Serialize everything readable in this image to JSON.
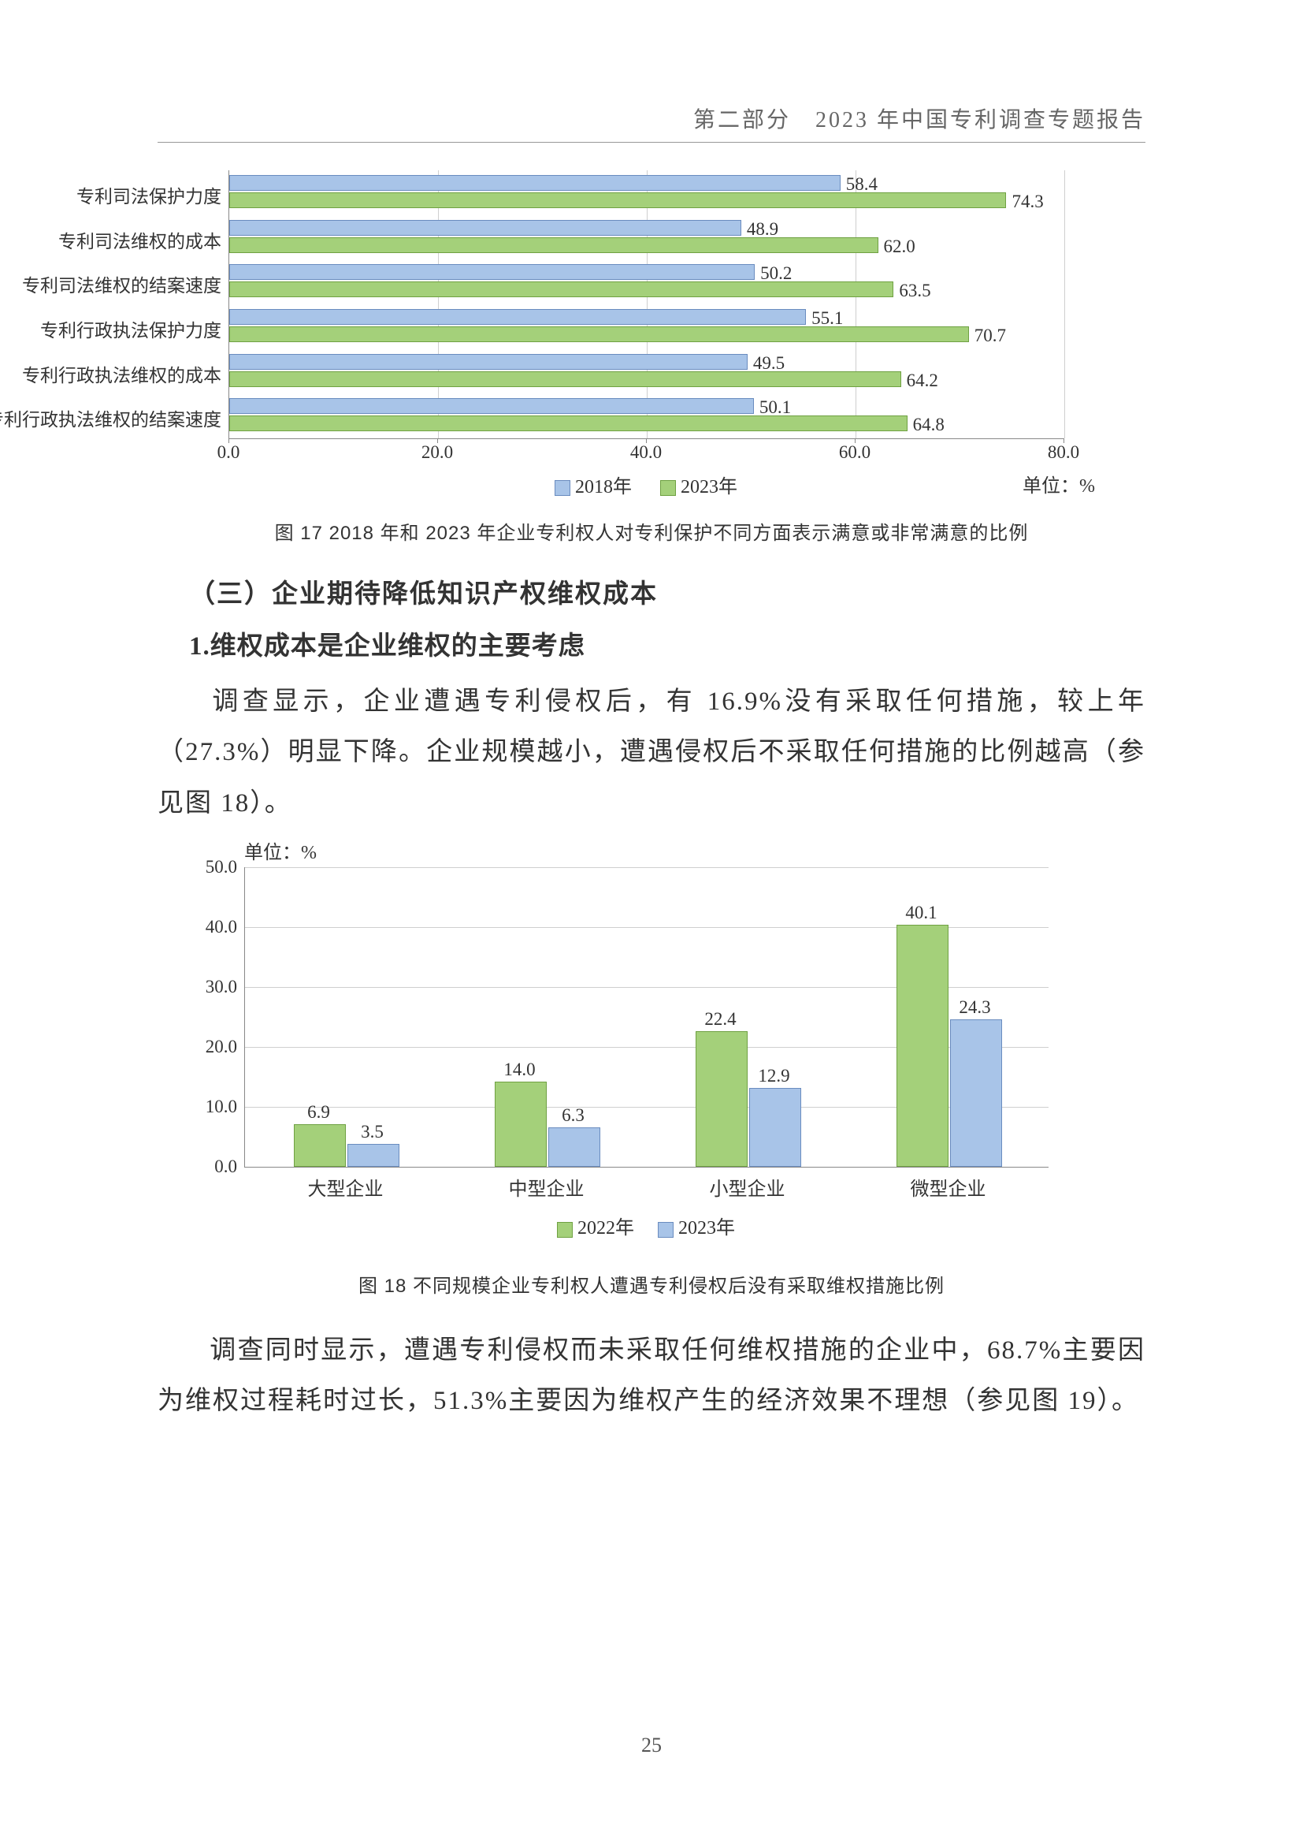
{
  "header": {
    "text": "第二部分　2023 年中国专利调查专题报告"
  },
  "chart1": {
    "type": "bar-horizontal-grouped",
    "categories": [
      "专利司法保护力度",
      "专利司法维权的成本",
      "专利司法维权的结案速度",
      "专利行政执法保护力度",
      "专利行政执法维权的成本",
      "专利行政执法维权的结案速度"
    ],
    "series": [
      {
        "name": "2018年",
        "color": "#a8c4e8",
        "border": "#6a8cbf",
        "values": [
          58.4,
          48.9,
          50.2,
          55.1,
          49.5,
          50.1
        ]
      },
      {
        "name": "2023年",
        "color": "#a4d07a",
        "border": "#6fa142",
        "values": [
          74.3,
          62.0,
          63.5,
          70.7,
          64.2,
          64.8
        ]
      }
    ],
    "xlim": [
      0,
      80
    ],
    "xtick_step": 20,
    "xticks": [
      "0.0",
      "20.0",
      "40.0",
      "60.0",
      "80.0"
    ],
    "unit_label": "单位：%",
    "background": "#ffffff",
    "grid_color": "#cfcfcf",
    "label_fontsize": 23,
    "value_fontsize": 23
  },
  "caption1": "图 17 2018 年和 2023 年企业专利权人对专利保护不同方面表示满意或非常满意的比例",
  "heading_sub": "（三）企业期待降低知识产权维权成本",
  "heading_num": "1.维权成本是企业维权的主要考虑",
  "para1": "调查显示，企业遭遇专利侵权后，有 16.9%没有采取任何措施，较上年（27.3%）明显下降。企业规模越小，遭遇侵权后不采取任何措施的比例越高（参见图 18）。",
  "chart2": {
    "type": "bar-vertical-grouped",
    "unit_label": "单位：%",
    "categories": [
      "大型企业",
      "中型企业",
      "小型企业",
      "微型企业"
    ],
    "series": [
      {
        "name": "2022年",
        "color": "#a4d07a",
        "border": "#6fa142",
        "values": [
          6.9,
          14.0,
          22.4,
          40.1
        ]
      },
      {
        "name": "2023年",
        "color": "#a8c4e8",
        "border": "#6a8cbf",
        "values": [
          3.5,
          6.3,
          12.9,
          24.3
        ]
      }
    ],
    "ylim": [
      0,
      50
    ],
    "ytick_step": 10,
    "yticks": [
      "0.0",
      "10.0",
      "20.0",
      "30.0",
      "40.0",
      "50.0"
    ],
    "background": "#ffffff",
    "grid_color": "#cfcfcf",
    "label_fontsize": 24,
    "value_fontsize": 23
  },
  "caption2": "图 18 不同规模企业专利权人遭遇专利侵权后没有采取维权措施比例",
  "para2": "调查同时显示，遭遇专利侵权而未采取任何维权措施的企业中，68.7%主要因为维权过程耗时过长，51.3%主要因为维权产生的经济效果不理想（参见图 19）。",
  "page_number": "25"
}
